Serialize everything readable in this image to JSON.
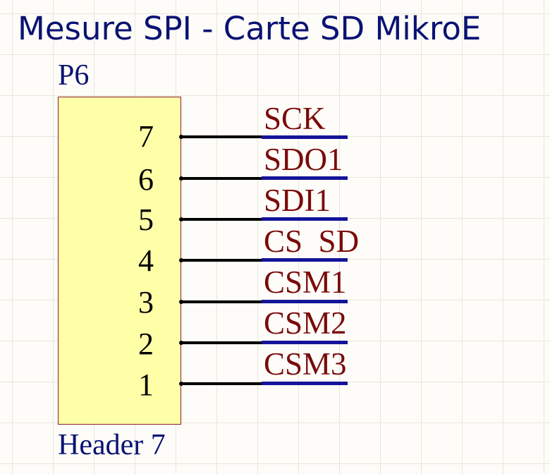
{
  "title": "Mesure SPI - Carte SD MikroE",
  "component": {
    "designator": "P6",
    "comment": "Header 7"
  },
  "pins": [
    {
      "number": "7",
      "net": "SCK"
    },
    {
      "number": "6",
      "net": "SDO1"
    },
    {
      "number": "5",
      "net": "SDI1"
    },
    {
      "number": "4",
      "net": "CS  SD"
    },
    {
      "number": "3",
      "net": "CSM1"
    },
    {
      "number": "2",
      "net": "CSM2"
    },
    {
      "number": "1",
      "net": "CSM3"
    }
  ],
  "colors": {
    "title": "#0a1273",
    "component_body": "#ffffa8",
    "body_border": "#8a2020",
    "wire": "#14149a",
    "net_label": "#7a0a0a",
    "pin": "#000000"
  }
}
